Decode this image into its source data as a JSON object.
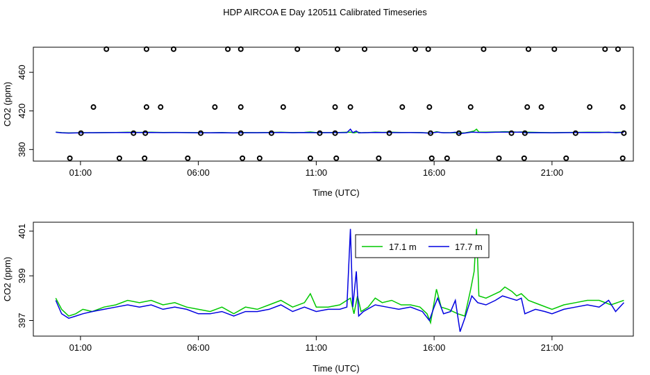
{
  "figure_title": "HDP AIRCOA E  Day 120511  Calibrated Timeseries",
  "chart_data": [
    {
      "type": "scatter",
      "title": "",
      "xlabel": "Time (UTC)",
      "ylabel": "CO2 (ppm)",
      "x_ticks": [
        {
          "hour": 1,
          "label": "01:00"
        },
        {
          "hour": 6,
          "label": "06:00"
        },
        {
          "hour": 11,
          "label": "11:00"
        },
        {
          "hour": 16,
          "label": "16:00"
        },
        {
          "hour": 21,
          "label": "21:00"
        }
      ],
      "y_ticks": [
        380,
        420,
        460
      ],
      "xlim_hours": [
        -1.0,
        24.45
      ],
      "ylim": [
        368,
        486
      ],
      "calibration_points": [
        {
          "hour": 0.55,
          "co2": 371
        },
        {
          "hour": 2.65,
          "co2": 371
        },
        {
          "hour": 3.72,
          "co2": 371
        },
        {
          "hour": 5.55,
          "co2": 371
        },
        {
          "hour": 7.87,
          "co2": 371
        },
        {
          "hour": 8.6,
          "co2": 371
        },
        {
          "hour": 10.75,
          "co2": 371
        },
        {
          "hour": 11.85,
          "co2": 371
        },
        {
          "hour": 13.65,
          "co2": 371
        },
        {
          "hour": 15.9,
          "co2": 371
        },
        {
          "hour": 16.55,
          "co2": 371
        },
        {
          "hour": 18.75,
          "co2": 371
        },
        {
          "hour": 19.82,
          "co2": 371
        },
        {
          "hour": 21.6,
          "co2": 371
        },
        {
          "hour": 24.0,
          "co2": 371
        },
        {
          "hour": 1.02,
          "co2": 397
        },
        {
          "hour": 3.25,
          "co2": 397
        },
        {
          "hour": 3.75,
          "co2": 397
        },
        {
          "hour": 6.1,
          "co2": 397
        },
        {
          "hour": 7.8,
          "co2": 397
        },
        {
          "hour": 9.1,
          "co2": 397
        },
        {
          "hour": 11.15,
          "co2": 397
        },
        {
          "hour": 11.8,
          "co2": 397
        },
        {
          "hour": 14.1,
          "co2": 397
        },
        {
          "hour": 15.85,
          "co2": 397
        },
        {
          "hour": 17.05,
          "co2": 397
        },
        {
          "hour": 19.28,
          "co2": 397
        },
        {
          "hour": 19.85,
          "co2": 397
        },
        {
          "hour": 22.0,
          "co2": 397
        },
        {
          "hour": 24.05,
          "co2": 397
        },
        {
          "hour": 1.55,
          "co2": 424
        },
        {
          "hour": 3.8,
          "co2": 424
        },
        {
          "hour": 4.4,
          "co2": 424
        },
        {
          "hour": 6.7,
          "co2": 424
        },
        {
          "hour": 7.8,
          "co2": 424
        },
        {
          "hour": 9.6,
          "co2": 424
        },
        {
          "hour": 11.8,
          "co2": 424
        },
        {
          "hour": 12.45,
          "co2": 424
        },
        {
          "hour": 14.65,
          "co2": 424
        },
        {
          "hour": 15.8,
          "co2": 424
        },
        {
          "hour": 17.55,
          "co2": 424
        },
        {
          "hour": 19.95,
          "co2": 424
        },
        {
          "hour": 20.55,
          "co2": 424
        },
        {
          "hour": 22.6,
          "co2": 424
        },
        {
          "hour": 24.0,
          "co2": 424
        },
        {
          "hour": 2.1,
          "co2": 484
        },
        {
          "hour": 3.8,
          "co2": 484
        },
        {
          "hour": 4.95,
          "co2": 484
        },
        {
          "hour": 7.25,
          "co2": 484
        },
        {
          "hour": 7.8,
          "co2": 484
        },
        {
          "hour": 10.2,
          "co2": 484
        },
        {
          "hour": 11.9,
          "co2": 484
        },
        {
          "hour": 13.05,
          "co2": 484
        },
        {
          "hour": 15.2,
          "co2": 484
        },
        {
          "hour": 15.75,
          "co2": 484
        },
        {
          "hour": 18.1,
          "co2": 484
        },
        {
          "hour": 20.0,
          "co2": 484
        },
        {
          "hour": 21.1,
          "co2": 484
        },
        {
          "hour": 23.25,
          "co2": 484
        },
        {
          "hour": 23.8,
          "co2": 484
        }
      ],
      "series": [
        {
          "color": "#00c800",
          "baseline_co2": 397.5
        },
        {
          "color": "#0000e0",
          "baseline_co2": 397.3
        }
      ]
    },
    {
      "type": "line",
      "title": "",
      "xlabel": "Time (UTC)",
      "ylabel": "CO2 (ppm)",
      "x_ticks": [
        {
          "hour": 1,
          "label": "01:00"
        },
        {
          "hour": 6,
          "label": "06:00"
        },
        {
          "hour": 11,
          "label": "11:00"
        },
        {
          "hour": 16,
          "label": "16:00"
        },
        {
          "hour": 21,
          "label": "21:00"
        }
      ],
      "y_ticks": [
        {
          "value": 397,
          "label": "397"
        },
        {
          "value": 399,
          "label": "399"
        },
        {
          "value": 401,
          "label": "401"
        }
      ],
      "xlim_hours": [
        -1.0,
        24.45
      ],
      "ylim": [
        396.3,
        401.4
      ],
      "legend_position": "top-center",
      "series": [
        {
          "name": "17.1 m",
          "color": "#00c800",
          "points": [
            [
              -0.05,
              398.0
            ],
            [
              0.2,
              397.5
            ],
            [
              0.5,
              397.2
            ],
            [
              0.8,
              397.3
            ],
            [
              1.1,
              397.5
            ],
            [
              1.5,
              397.4
            ],
            [
              2.0,
              397.6
            ],
            [
              2.5,
              397.7
            ],
            [
              3.0,
              397.9
            ],
            [
              3.5,
              397.8
            ],
            [
              4.0,
              397.9
            ],
            [
              4.5,
              397.7
            ],
            [
              5.0,
              397.8
            ],
            [
              5.5,
              397.6
            ],
            [
              6.0,
              397.5
            ],
            [
              6.5,
              397.4
            ],
            [
              7.0,
              397.6
            ],
            [
              7.5,
              397.3
            ],
            [
              8.0,
              397.6
            ],
            [
              8.5,
              397.5
            ],
            [
              9.0,
              397.7
            ],
            [
              9.5,
              397.9
            ],
            [
              10.0,
              397.6
            ],
            [
              10.5,
              397.8
            ],
            [
              10.75,
              398.2
            ],
            [
              11.0,
              397.6
            ],
            [
              11.5,
              397.6
            ],
            [
              12.0,
              397.7
            ],
            [
              12.3,
              397.9
            ],
            [
              12.45,
              398.0
            ],
            [
              12.6,
              397.3
            ],
            [
              12.75,
              398.1
            ],
            [
              12.9,
              397.4
            ],
            [
              13.2,
              397.6
            ],
            [
              13.5,
              398.0
            ],
            [
              13.8,
              397.8
            ],
            [
              14.2,
              397.9
            ],
            [
              14.6,
              397.7
            ],
            [
              15.0,
              397.7
            ],
            [
              15.4,
              397.6
            ],
            [
              15.7,
              397.3
            ],
            [
              15.85,
              396.9
            ],
            [
              16.0,
              397.8
            ],
            [
              16.1,
              398.4
            ],
            [
              16.3,
              397.6
            ],
            [
              16.6,
              397.5
            ],
            [
              17.0,
              397.3
            ],
            [
              17.3,
              397.2
            ],
            [
              17.55,
              398.4
            ],
            [
              17.7,
              399.2
            ],
            [
              17.8,
              401.1
            ],
            [
              17.9,
              398.1
            ],
            [
              18.2,
              398.0
            ],
            [
              18.6,
              398.2
            ],
            [
              18.8,
              398.3
            ],
            [
              19.0,
              398.5
            ],
            [
              19.3,
              398.3
            ],
            [
              19.5,
              398.1
            ],
            [
              19.7,
              398.2
            ],
            [
              20.0,
              397.9
            ],
            [
              20.5,
              397.7
            ],
            [
              21.0,
              397.5
            ],
            [
              21.5,
              397.7
            ],
            [
              22.0,
              397.8
            ],
            [
              22.5,
              397.9
            ],
            [
              23.0,
              397.9
            ],
            [
              23.5,
              397.7
            ],
            [
              24.05,
              397.9
            ]
          ]
        },
        {
          "name": "17.7 m",
          "color": "#0000e0",
          "points": [
            [
              -0.05,
              397.9
            ],
            [
              0.2,
              397.3
            ],
            [
              0.5,
              397.1
            ],
            [
              0.8,
              397.2
            ],
            [
              1.1,
              397.3
            ],
            [
              1.5,
              397.4
            ],
            [
              2.0,
              397.5
            ],
            [
              2.5,
              397.6
            ],
            [
              3.0,
              397.7
            ],
            [
              3.5,
              397.6
            ],
            [
              4.0,
              397.7
            ],
            [
              4.5,
              397.5
            ],
            [
              5.0,
              397.6
            ],
            [
              5.5,
              397.5
            ],
            [
              6.0,
              397.3
            ],
            [
              6.5,
              397.3
            ],
            [
              7.0,
              397.4
            ],
            [
              7.5,
              397.2
            ],
            [
              8.0,
              397.4
            ],
            [
              8.5,
              397.4
            ],
            [
              9.0,
              397.5
            ],
            [
              9.5,
              397.7
            ],
            [
              10.0,
              397.4
            ],
            [
              10.5,
              397.6
            ],
            [
              11.0,
              397.4
            ],
            [
              11.5,
              397.5
            ],
            [
              12.0,
              397.5
            ],
            [
              12.3,
              397.6
            ],
            [
              12.45,
              401.1
            ],
            [
              12.55,
              397.6
            ],
            [
              12.7,
              399.2
            ],
            [
              12.8,
              397.2
            ],
            [
              13.0,
              397.4
            ],
            [
              13.5,
              397.7
            ],
            [
              14.0,
              397.6
            ],
            [
              14.5,
              397.5
            ],
            [
              15.0,
              397.6
            ],
            [
              15.5,
              397.4
            ],
            [
              15.8,
              397.0
            ],
            [
              16.0,
              397.6
            ],
            [
              16.15,
              398.0
            ],
            [
              16.4,
              397.3
            ],
            [
              16.7,
              397.4
            ],
            [
              16.9,
              397.9
            ],
            [
              17.1,
              396.5
            ],
            [
              17.3,
              397.1
            ],
            [
              17.6,
              398.1
            ],
            [
              17.85,
              397.8
            ],
            [
              18.2,
              397.7
            ],
            [
              18.6,
              397.9
            ],
            [
              18.9,
              398.1
            ],
            [
              19.2,
              398.0
            ],
            [
              19.5,
              397.9
            ],
            [
              19.7,
              398.0
            ],
            [
              19.85,
              397.3
            ],
            [
              20.3,
              397.5
            ],
            [
              20.7,
              397.4
            ],
            [
              21.0,
              397.3
            ],
            [
              21.5,
              397.5
            ],
            [
              22.0,
              397.6
            ],
            [
              22.5,
              397.7
            ],
            [
              23.0,
              397.6
            ],
            [
              23.4,
              397.9
            ],
            [
              23.7,
              397.4
            ],
            [
              24.05,
              397.8
            ]
          ]
        }
      ]
    }
  ]
}
